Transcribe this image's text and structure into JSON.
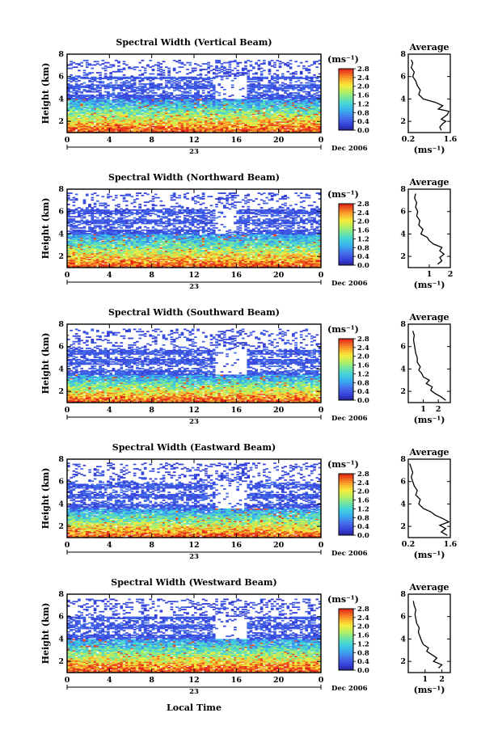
{
  "figure": {
    "xlabel": "Local Time",
    "avg_title": "Average",
    "colorbar_unit": "(ms⁻¹)",
    "date_label": "Dec 2006",
    "day_label": "23"
  },
  "chart_data": [
    {
      "type": "heatmap",
      "title": "Spectral Width (Vertical Beam)",
      "ylabel": "Height (km)",
      "xlim": [
        0,
        24
      ],
      "ylim": [
        1,
        8
      ],
      "x_ticks": [
        "0",
        "4",
        "8",
        "12",
        "16",
        "20",
        "0"
      ],
      "y_ticks": [
        "2",
        "4",
        "6",
        "8"
      ],
      "colorbar": {
        "ticks": [
          "0.0",
          "0.4",
          "0.8",
          "1.2",
          "1.6",
          "2.0",
          "2.4",
          "2.8"
        ],
        "range": [
          0,
          2.8
        ]
      },
      "features": {
        "low_layer_top_km": 4.0,
        "mid_echo_top_km": 6.0,
        "sparse_top_km": 7.5,
        "gap_hours": [
          14,
          17
        ]
      },
      "profile": {
        "xlim": [
          0.2,
          1.6
        ],
        "x_ticks": [
          "0.2",
          "1.6"
        ],
        "ylim": [
          1,
          8
        ],
        "y_ticks": [
          "2",
          "4",
          "6",
          "8"
        ],
        "xlabel": "(ms⁻¹)",
        "points": [
          [
            1.3,
            1.2
          ],
          [
            1.25,
            1.5
          ],
          [
            1.35,
            1.8
          ],
          [
            1.45,
            2.0
          ],
          [
            1.3,
            2.2
          ],
          [
            1.5,
            2.6
          ],
          [
            1.55,
            2.9
          ],
          [
            1.2,
            3.1
          ],
          [
            1.35,
            3.4
          ],
          [
            1.1,
            3.7
          ],
          [
            0.7,
            4.0
          ],
          [
            0.55,
            4.4
          ],
          [
            0.6,
            4.8
          ],
          [
            0.5,
            5.2
          ],
          [
            0.45,
            5.6
          ],
          [
            0.35,
            6.0
          ],
          [
            0.4,
            6.4
          ],
          [
            0.3,
            6.8
          ],
          [
            0.35,
            7.2
          ],
          [
            0.3,
            7.5
          ]
        ]
      }
    },
    {
      "type": "heatmap",
      "title": "Spectral Width (Northward Beam)",
      "ylabel": "Height (km)",
      "xlim": [
        0,
        24
      ],
      "ylim": [
        1,
        8
      ],
      "x_ticks": [
        "0",
        "4",
        "8",
        "12",
        "16",
        "20",
        "0"
      ],
      "y_ticks": [
        "2",
        "4",
        "6",
        "8"
      ],
      "colorbar": {
        "ticks": [
          "0.0",
          "0.4",
          "0.8",
          "1.2",
          "1.6",
          "2.0",
          "2.4",
          "2.8"
        ],
        "range": [
          0,
          2.8
        ]
      },
      "features": {
        "low_layer_top_km": 4.0,
        "mid_echo_top_km": 6.2,
        "sparse_top_km": 7.7,
        "gap_hours": [
          14,
          16
        ]
      },
      "profile": {
        "xlim": [
          0,
          2
        ],
        "x_ticks": [
          "1",
          "2"
        ],
        "ylim": [
          1,
          8
        ],
        "y_ticks": [
          "2",
          "4",
          "6",
          "8"
        ],
        "xlabel": "(ms⁻¹)",
        "points": [
          [
            1.4,
            1.3
          ],
          [
            1.6,
            1.6
          ],
          [
            1.5,
            1.9
          ],
          [
            1.7,
            2.2
          ],
          [
            1.5,
            2.5
          ],
          [
            1.6,
            2.8
          ],
          [
            1.2,
            3.1
          ],
          [
            1.0,
            3.4
          ],
          [
            0.9,
            3.7
          ],
          [
            0.6,
            4.0
          ],
          [
            0.7,
            4.4
          ],
          [
            0.5,
            4.8
          ],
          [
            0.55,
            5.2
          ],
          [
            0.4,
            5.6
          ],
          [
            0.45,
            6.0
          ],
          [
            0.35,
            6.4
          ],
          [
            0.4,
            6.8
          ],
          [
            0.3,
            7.2
          ],
          [
            0.35,
            7.6
          ]
        ]
      }
    },
    {
      "type": "heatmap",
      "title": "Spectral Width (Southward Beam)",
      "ylabel": "Height (km)",
      "xlim": [
        0,
        24
      ],
      "ylim": [
        1,
        8
      ],
      "x_ticks": [
        "0",
        "4",
        "8",
        "12",
        "16",
        "20",
        "0"
      ],
      "y_ticks": [
        "2",
        "4",
        "6",
        "8"
      ],
      "colorbar": {
        "ticks": [
          "0.0",
          "0.4",
          "0.8",
          "1.2",
          "1.6",
          "2.0",
          "2.4",
          "2.8"
        ],
        "range": [
          0,
          2.8
        ]
      },
      "features": {
        "low_layer_top_km": 3.5,
        "mid_echo_top_km": 5.8,
        "sparse_top_km": 7.6,
        "gap_hours": [
          14,
          17
        ]
      },
      "profile": {
        "xlim": [
          0,
          2.8
        ],
        "x_ticks": [
          "1",
          "2"
        ],
        "ylim": [
          1,
          8
        ],
        "y_ticks": [
          "2",
          "4",
          "6",
          "8"
        ],
        "xlabel": "(ms⁻¹)",
        "points": [
          [
            2.5,
            1.2
          ],
          [
            2.2,
            1.5
          ],
          [
            1.8,
            1.8
          ],
          [
            1.5,
            2.1
          ],
          [
            1.6,
            2.4
          ],
          [
            1.2,
            2.7
          ],
          [
            1.4,
            3.0
          ],
          [
            1.0,
            3.3
          ],
          [
            0.9,
            3.6
          ],
          [
            0.7,
            3.9
          ],
          [
            0.8,
            4.2
          ],
          [
            0.6,
            4.6
          ],
          [
            0.6,
            5.0
          ],
          [
            0.5,
            5.4
          ],
          [
            0.45,
            5.8
          ],
          [
            0.4,
            6.2
          ],
          [
            0.35,
            6.6
          ],
          [
            0.4,
            7.0
          ],
          [
            0.3,
            7.4
          ]
        ]
      }
    },
    {
      "type": "heatmap",
      "title": "Spectral Width (Eastward Beam)",
      "ylabel": "Height (km)",
      "xlim": [
        0,
        24
      ],
      "ylim": [
        1,
        8
      ],
      "x_ticks": [
        "0",
        "4",
        "8",
        "12",
        "16",
        "20",
        "0"
      ],
      "y_ticks": [
        "2",
        "4",
        "6",
        "8"
      ],
      "colorbar": {
        "ticks": [
          "0.0",
          "0.4",
          "0.8",
          "1.2",
          "1.6",
          "2.0",
          "2.4",
          "2.8"
        ],
        "range": [
          0,
          2.8
        ]
      },
      "features": {
        "low_layer_top_km": 3.6,
        "mid_echo_top_km": 6.0,
        "sparse_top_km": 7.7,
        "gap_hours": [
          14,
          17
        ]
      },
      "profile": {
        "xlim": [
          0.2,
          1.6
        ],
        "x_ticks": [
          "0.2",
          "1.6"
        ],
        "ylim": [
          1,
          8
        ],
        "y_ticks": [
          "2",
          "4",
          "6",
          "8"
        ],
        "xlabel": "(ms⁻¹)",
        "points": [
          [
            1.5,
            1.2
          ],
          [
            1.3,
            1.5
          ],
          [
            1.45,
            1.8
          ],
          [
            1.25,
            2.1
          ],
          [
            1.55,
            2.4
          ],
          [
            1.35,
            2.7
          ],
          [
            1.1,
            3.0
          ],
          [
            0.95,
            3.3
          ],
          [
            0.7,
            3.6
          ],
          [
            0.55,
            4.0
          ],
          [
            0.6,
            4.4
          ],
          [
            0.45,
            4.8
          ],
          [
            0.5,
            5.2
          ],
          [
            0.4,
            5.6
          ],
          [
            0.35,
            6.0
          ],
          [
            0.3,
            6.4
          ],
          [
            0.35,
            6.8
          ],
          [
            0.3,
            7.2
          ],
          [
            0.25,
            7.6
          ]
        ]
      }
    },
    {
      "type": "heatmap",
      "title": "Spectral Width (Westward Beam)",
      "ylabel": "Height (km)",
      "xlim": [
        0,
        24
      ],
      "ylim": [
        1,
        8
      ],
      "x_ticks": [
        "0",
        "4",
        "8",
        "12",
        "16",
        "20",
        "0"
      ],
      "y_ticks": [
        "2",
        "4",
        "6",
        "8"
      ],
      "colorbar": {
        "ticks": [
          "0.0",
          "0.4",
          "0.8",
          "1.2",
          "1.6",
          "2.0",
          "2.4",
          "2.8"
        ],
        "range": [
          0,
          2.8
        ]
      },
      "features": {
        "low_layer_top_km": 4.0,
        "mid_echo_top_km": 6.0,
        "sparse_top_km": 7.6,
        "gap_hours": [
          14,
          17
        ]
      },
      "profile": {
        "xlim": [
          0,
          2.5
        ],
        "x_ticks": [
          "1",
          "2"
        ],
        "ylim": [
          1,
          8
        ],
        "y_ticks": [
          "2",
          "4",
          "6",
          "8"
        ],
        "xlabel": "(ms⁻¹)",
        "points": [
          [
            1.8,
            1.4
          ],
          [
            2.0,
            1.7
          ],
          [
            1.5,
            2.0
          ],
          [
            1.7,
            2.3
          ],
          [
            1.4,
            2.6
          ],
          [
            1.1,
            2.9
          ],
          [
            1.2,
            3.2
          ],
          [
            0.9,
            3.5
          ],
          [
            0.8,
            3.8
          ],
          [
            0.7,
            4.2
          ],
          [
            0.6,
            4.6
          ],
          [
            0.65,
            5.0
          ],
          [
            0.5,
            5.4
          ],
          [
            0.45,
            5.8
          ],
          [
            0.4,
            6.2
          ],
          [
            0.45,
            6.6
          ],
          [
            0.35,
            7.0
          ],
          [
            0.3,
            7.4
          ]
        ]
      }
    }
  ]
}
